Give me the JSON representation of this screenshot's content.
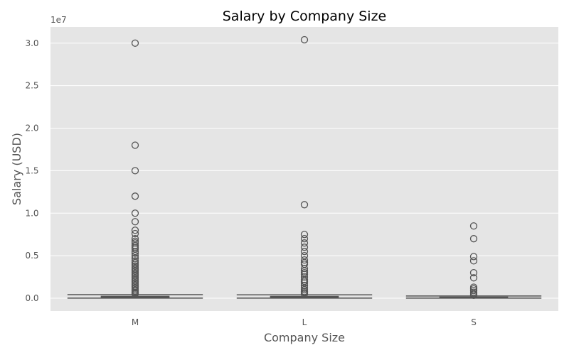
{
  "chart_data": {
    "type": "box",
    "title": "Salary by Company Size",
    "xlabel": "Company Size",
    "ylabel": "Salary (USD)",
    "y_offset_label": "1e7",
    "ylim": [
      -1500000,
      31900000
    ],
    "yticks": [
      0,
      5000000,
      10000000,
      15000000,
      20000000,
      25000000,
      30000000
    ],
    "ytick_labels": [
      "0.0",
      "0.5",
      "1.0",
      "1.5",
      "2.0",
      "2.5",
      "3.0"
    ],
    "grid": true,
    "categories": [
      "M",
      "L",
      "S"
    ],
    "boxes": [
      {
        "category": "M",
        "whislo": 15000,
        "q1": 80000,
        "median": 135000,
        "q3": 220000,
        "whishi": 420000,
        "outliers": [
          30000000,
          18000000,
          15000000,
          12000000,
          10000000,
          9000000,
          8000000,
          7600000,
          7000000,
          6700000,
          6500000,
          6200000,
          6000000,
          5800000,
          5500000,
          5300000,
          5000000,
          4700000,
          4400000,
          4200000,
          4000000,
          3800000,
          3600000,
          3400000,
          3200000,
          3000000,
          2800000,
          2600000,
          2400000,
          2200000,
          2000000,
          1800000,
          1600000,
          1400000,
          1200000,
          1000000,
          850000,
          700000,
          600000,
          500000
        ]
      },
      {
        "category": "L",
        "whislo": 15000,
        "q1": 80000,
        "median": 130000,
        "q3": 210000,
        "whishi": 400000,
        "outliers": [
          30400000,
          11000000,
          7500000,
          7000000,
          6500000,
          6000000,
          5500000,
          5000000,
          4500000,
          4200000,
          4000000,
          3500000,
          3200000,
          3000000,
          2800000,
          2500000,
          2200000,
          2000000,
          1800000,
          1500000,
          1200000,
          1000000,
          800000,
          650000,
          500000
        ]
      },
      {
        "category": "S",
        "whislo": 10000,
        "q1": 40000,
        "median": 70000,
        "q3": 130000,
        "whishi": 260000,
        "outliers": [
          8500000,
          7000000,
          4900000,
          4400000,
          3000000,
          2400000,
          1300000,
          1100000,
          900000,
          700000,
          500000,
          350000
        ]
      }
    ],
    "colors": {
      "plot_background": "#e5e5e5",
      "grid": "#ffffff",
      "box_face": "#f2f2f2",
      "box_edge": "#555555",
      "text": "#555555"
    }
  }
}
